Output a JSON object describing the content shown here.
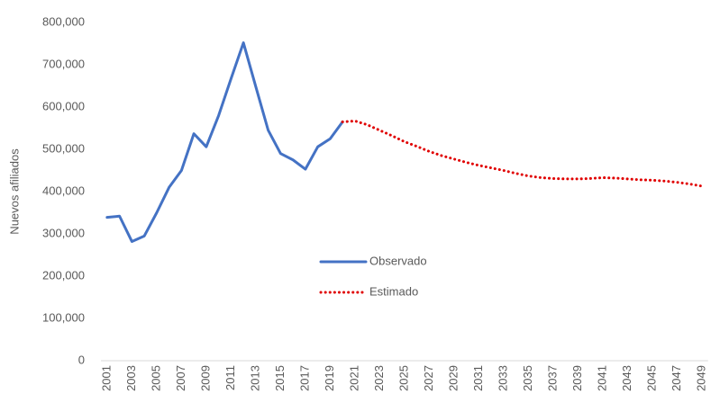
{
  "chart_data": {
    "type": "line",
    "y_label": "Nuevos afiliados",
    "x": [
      2001,
      2002,
      2003,
      2004,
      2005,
      2006,
      2007,
      2008,
      2009,
      2010,
      2011,
      2012,
      2013,
      2014,
      2015,
      2016,
      2017,
      2018,
      2019,
      2020,
      2021,
      2022,
      2023,
      2024,
      2025,
      2026,
      2027,
      2028,
      2029,
      2030,
      2031,
      2032,
      2033,
      2034,
      2035,
      2036,
      2037,
      2038,
      2039,
      2040,
      2041,
      2042,
      2043,
      2044,
      2045,
      2046,
      2047,
      2048,
      2049
    ],
    "xlim": [
      2000.5,
      2049.5
    ],
    "xticks": [
      2001,
      2003,
      2005,
      2007,
      2009,
      2011,
      2013,
      2015,
      2017,
      2019,
      2021,
      2023,
      2025,
      2027,
      2029,
      2031,
      2033,
      2035,
      2037,
      2039,
      2041,
      2043,
      2045,
      2047,
      2049
    ],
    "ylim": [
      0,
      800000
    ],
    "yticks": [
      0,
      {
        "value": 100000,
        "label": "100,000"
      },
      {
        "value": 200000,
        "label": "200,000"
      },
      {
        "value": 300000,
        "label": "300,000"
      },
      {
        "value": 400000,
        "label": "400,000"
      },
      {
        "value": 500000,
        "label": "500,000"
      },
      {
        "value": 600000,
        "label": "600,000"
      },
      {
        "value": 700000,
        "label": "700,000"
      },
      {
        "value": 800000,
        "label": "800,000"
      }
    ],
    "grid": false,
    "legend": "center",
    "series": [
      {
        "name": "Observado",
        "color": "#4472c4",
        "style": "solid",
        "values": [
          339000,
          342000,
          282000,
          295000,
          350000,
          410000,
          450000,
          537000,
          506000,
          580000,
          667000,
          752000,
          648000,
          545000,
          490000,
          475000,
          453000,
          506000,
          525000,
          565000,
          null,
          null,
          null,
          null,
          null,
          null,
          null,
          null,
          null,
          null,
          null,
          null,
          null,
          null,
          null,
          null,
          null,
          null,
          null,
          null,
          null,
          null,
          null,
          null,
          null,
          null,
          null,
          null,
          null
        ]
      },
      {
        "name": "Estimado",
        "color": "#e00000",
        "style": "dotted",
        "values": [
          null,
          null,
          null,
          null,
          null,
          null,
          null,
          null,
          null,
          null,
          null,
          null,
          null,
          null,
          null,
          null,
          null,
          null,
          null,
          565000,
          567000,
          558000,
          545000,
          532000,
          518000,
          507000,
          495000,
          485000,
          477000,
          469000,
          462000,
          456000,
          450000,
          443000,
          437000,
          433000,
          431000,
          430000,
          430000,
          431000,
          433000,
          432000,
          430000,
          428000,
          427000,
          425000,
          422000,
          418000,
          413000
        ]
      }
    ]
  }
}
